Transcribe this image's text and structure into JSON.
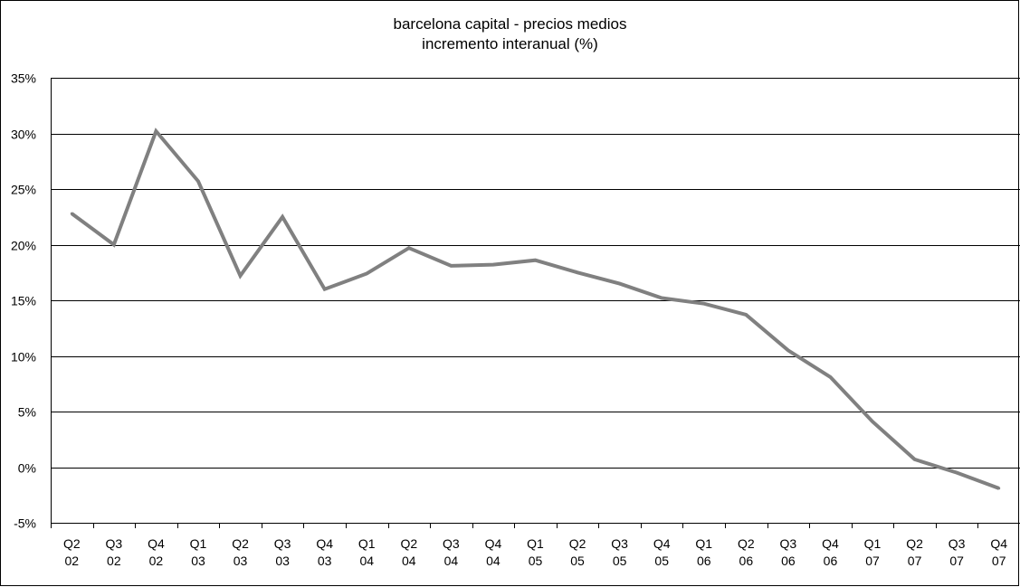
{
  "chart_data": {
    "type": "line",
    "title": "barcelona capital - precios medios",
    "subtitle": "incremento interanual (%)",
    "xlabel": "",
    "ylabel": "",
    "ylim": [
      -5,
      35
    ],
    "y_ticks": [
      -5,
      0,
      5,
      10,
      15,
      20,
      25,
      30,
      35
    ],
    "y_tick_labels": [
      "-5%",
      "0%",
      "5%",
      "10%",
      "15%",
      "20%",
      "25%",
      "30%",
      "35%"
    ],
    "grid": true,
    "legend": "none",
    "categories": [
      [
        "Q2",
        "02"
      ],
      [
        "Q3",
        "02"
      ],
      [
        "Q4",
        "02"
      ],
      [
        "Q1",
        "03"
      ],
      [
        "Q2",
        "03"
      ],
      [
        "Q3",
        "03"
      ],
      [
        "Q4",
        "03"
      ],
      [
        "Q1",
        "04"
      ],
      [
        "Q2",
        "04"
      ],
      [
        "Q3",
        "04"
      ],
      [
        "Q4",
        "04"
      ],
      [
        "Q1",
        "05"
      ],
      [
        "Q2",
        "05"
      ],
      [
        "Q3",
        "05"
      ],
      [
        "Q4",
        "05"
      ],
      [
        "Q1",
        "06"
      ],
      [
        "Q2",
        "06"
      ],
      [
        "Q3",
        "06"
      ],
      [
        "Q4",
        "06"
      ],
      [
        "Q1",
        "07"
      ],
      [
        "Q2",
        "07"
      ],
      [
        "Q3",
        "07"
      ],
      [
        "Q4",
        "07"
      ]
    ],
    "series": [
      {
        "color": "#808080",
        "values": [
          22.8,
          20.0,
          30.2,
          25.7,
          17.2,
          22.5,
          16.0,
          17.4,
          19.7,
          18.1,
          18.2,
          18.6,
          17.5,
          16.5,
          15.2,
          14.7,
          13.7,
          10.5,
          8.1,
          4.1,
          0.7,
          -0.5,
          -1.9
        ]
      }
    ]
  }
}
